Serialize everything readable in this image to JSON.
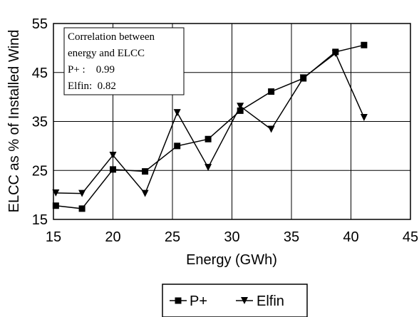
{
  "chart_data": {
    "type": "line",
    "title": "",
    "xlabel": "Energy (GWh)",
    "ylabel": "ELCC as % of Installed Wind",
    "xlim": [
      15,
      45
    ],
    "ylim": [
      15,
      55
    ],
    "xticks": [
      "15",
      "20",
      "25",
      "30",
      "35",
      "40",
      "45"
    ],
    "yticks": [
      "15",
      "25",
      "35",
      "45",
      "55"
    ],
    "grid": "horizontal and vertical",
    "legend_position": "bottom",
    "series": [
      {
        "name": "P+",
        "marker": "square",
        "x": [
          15.2,
          17.4,
          20.0,
          22.7,
          25.4,
          28.0,
          30.7,
          33.3,
          36.0,
          38.7,
          41.1
        ],
        "y": [
          17.8,
          17.2,
          25.2,
          24.8,
          30.0,
          31.4,
          37.2,
          41.1,
          43.8,
          49.2,
          50.6
        ]
      },
      {
        "name": "Elfin",
        "marker": "triangle-down",
        "x": [
          15.2,
          17.4,
          20.0,
          22.7,
          25.4,
          28.0,
          30.7,
          33.3,
          36.0,
          38.7,
          41.1
        ],
        "y": [
          20.4,
          20.3,
          28.1,
          20.3,
          36.8,
          25.6,
          38.1,
          33.4,
          43.9,
          48.9,
          35.8
        ]
      }
    ],
    "annotation": {
      "line1": "Correlation between",
      "line2": "energy and ELCC",
      "line3": "P+ :    0.99",
      "line4": "Elfin:  0.82"
    }
  }
}
